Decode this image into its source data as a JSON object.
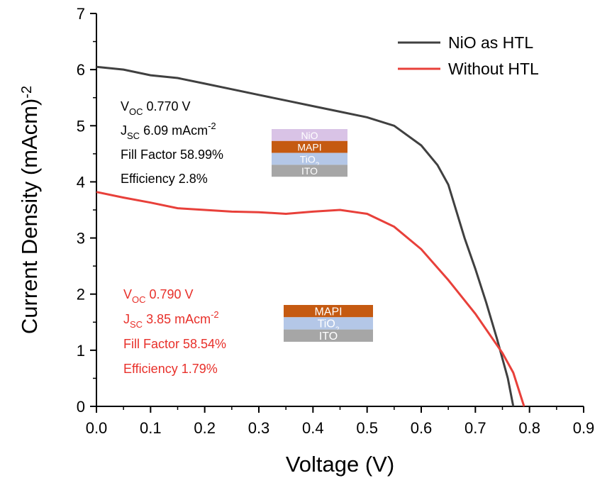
{
  "chart_data": {
    "type": "line",
    "xlabel": "Voltage (V)",
    "ylabel": {
      "main": "Current Density (mAcm",
      "sup": "-2",
      "tail": ")"
    },
    "xlim": [
      0,
      0.9
    ],
    "ylim": [
      0,
      7
    ],
    "xticks": [
      {
        "value": 0,
        "label": "0.0"
      },
      0.1,
      0.2,
      0.3,
      0.4,
      0.5,
      0.6,
      0.7,
      0.8,
      0.9
    ],
    "yticks": [
      0,
      1,
      2,
      3,
      4,
      5,
      6,
      7
    ],
    "legend": "upper right",
    "series": [
      {
        "name": "NiO as HTL",
        "color": "#404040",
        "x": [
          0,
          0.05,
          0.1,
          0.15,
          0.2,
          0.25,
          0.3,
          0.35,
          0.4,
          0.45,
          0.5,
          0.55,
          0.6,
          0.63,
          0.65,
          0.68,
          0.7,
          0.72,
          0.74,
          0.76,
          0.77
        ],
        "values": [
          6.05,
          6.0,
          5.9,
          5.85,
          5.75,
          5.65,
          5.55,
          5.45,
          5.35,
          5.25,
          5.15,
          5.0,
          4.65,
          4.3,
          3.95,
          3.0,
          2.45,
          1.85,
          1.2,
          0.5,
          0
        ]
      },
      {
        "name": "Without HTL",
        "color": "#e8403a",
        "x": [
          0,
          0.05,
          0.1,
          0.15,
          0.2,
          0.25,
          0.3,
          0.35,
          0.4,
          0.45,
          0.5,
          0.55,
          0.6,
          0.65,
          0.7,
          0.75,
          0.77,
          0.79
        ],
        "values": [
          3.82,
          3.72,
          3.63,
          3.53,
          3.5,
          3.47,
          3.46,
          3.43,
          3.47,
          3.5,
          3.43,
          3.2,
          2.8,
          2.25,
          1.65,
          0.95,
          0.6,
          0
        ]
      }
    ],
    "annotations": [
      {
        "color": "#000000",
        "lines": [
          {
            "main": "V",
            "sub": "OC",
            "tail": " 0.770 V"
          },
          {
            "main": "J",
            "sub": "SC",
            "tail": " 6.09 mAcm",
            "sup": "-2"
          },
          {
            "main": "Fill Factor 58.99%"
          },
          {
            "main": "Efficiency 2.8%"
          }
        ]
      },
      {
        "color": "#e8302a",
        "lines": [
          {
            "main": "V",
            "sub": "OC",
            "tail": " 0.790 V"
          },
          {
            "main": "J",
            "sub": "SC",
            "tail": " 3.85 mAcm",
            "sup": "-2"
          },
          {
            "main": "Fill Factor 58.54%"
          },
          {
            "main": "Efficiency 1.79%"
          }
        ]
      }
    ],
    "stacks": [
      [
        {
          "main": "NiO",
          "color": "#d9c3e6"
        },
        {
          "main": "MAPI",
          "color": "#c55a11"
        },
        {
          "main": "TiO",
          "sub": "2",
          "color": "#b4c7e7"
        },
        {
          "main": "ITO",
          "color": "#a6a6a6"
        }
      ],
      [
        {
          "main": "MAPI",
          "color": "#c55a11"
        },
        {
          "main": "TiO",
          "sub": "2",
          "color": "#b4c7e7"
        },
        {
          "main": "ITO",
          "color": "#a6a6a6"
        }
      ]
    ]
  }
}
